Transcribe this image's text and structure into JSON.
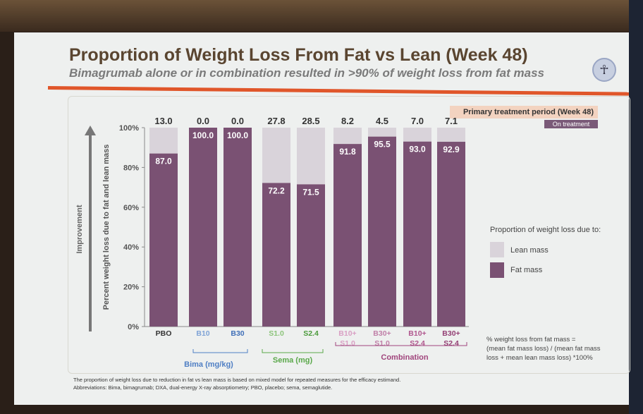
{
  "slide": {
    "title": "Proportion of Weight Loss From Fat vs Lean (Week 48)",
    "subtitle": "Bimagrumab alone or in combination resulted in >90% of weight loss from fat mass",
    "period_label": "Primary treatment period (Week 48)",
    "on_treatment_label": "On treatment",
    "improvement_label": "Improvement",
    "legend_title": "Proportion of weight loss due to:",
    "formula": [
      "% weight loss from fat mass =",
      "(mean fat mass loss) / (mean fat mass",
      "loss + mean lean mass loss) *100%"
    ],
    "footnotes": [
      "The proportion of weight loss due to reduction in fat vs lean mass is based on mixed model for repeated measures for the efficacy estimand.",
      "Abbreviations: Bima, bimagrumab; DXA, dual-energy X-ray absorptiometry; PBO, placebo; sema, semaglutide."
    ],
    "groups": [
      {
        "label": "Bima (mg/kg)",
        "color": "#4f7fc4"
      },
      {
        "label": "Sema (mg)",
        "color": "#5aa84a"
      },
      {
        "label": "Combination",
        "color": "#a0457c"
      }
    ],
    "colors": {
      "fat": "#7a5173",
      "lean": "#d9d3da"
    }
  },
  "chart_data": {
    "type": "bar",
    "stacked": true,
    "title": "Proportion of Weight Loss From Fat vs Lean (Week 48)",
    "ylabel": "Percent weight loss due to fat and lean mass",
    "ylim": [
      0,
      100
    ],
    "yticks": [
      "0%",
      "20%",
      "40%",
      "60%",
      "80%",
      "100%"
    ],
    "categories": [
      {
        "lines": [
          "PBO"
        ],
        "color": "#333333"
      },
      {
        "lines": [
          "B10"
        ],
        "color": "#7fa3d6"
      },
      {
        "lines": [
          "B30"
        ],
        "color": "#3f6fb8"
      },
      {
        "lines": [
          "S1.0"
        ],
        "color": "#8cc47a"
      },
      {
        "lines": [
          "S2.4"
        ],
        "color": "#4a9a3a"
      },
      {
        "lines": [
          "B10+",
          "S1.0"
        ],
        "color": "#d9a0c4"
      },
      {
        "lines": [
          "B30+",
          "S1.0"
        ],
        "color": "#c080a8"
      },
      {
        "lines": [
          "B10+",
          "S2.4"
        ],
        "color": "#b0578e"
      },
      {
        "lines": [
          "B30+",
          "S2.4"
        ],
        "color": "#933f74"
      }
    ],
    "series": [
      {
        "name": "Fat mass",
        "values": [
          87.0,
          100.0,
          100.0,
          72.2,
          71.5,
          91.8,
          95.5,
          93.0,
          92.9
        ]
      },
      {
        "name": "Lean mass",
        "values": [
          13.0,
          0.0,
          0.0,
          27.8,
          28.5,
          8.2,
          4.5,
          7.0,
          7.1
        ]
      }
    ],
    "legend": {
      "position": "right",
      "entries": [
        "Lean mass",
        "Fat mass"
      ]
    }
  }
}
